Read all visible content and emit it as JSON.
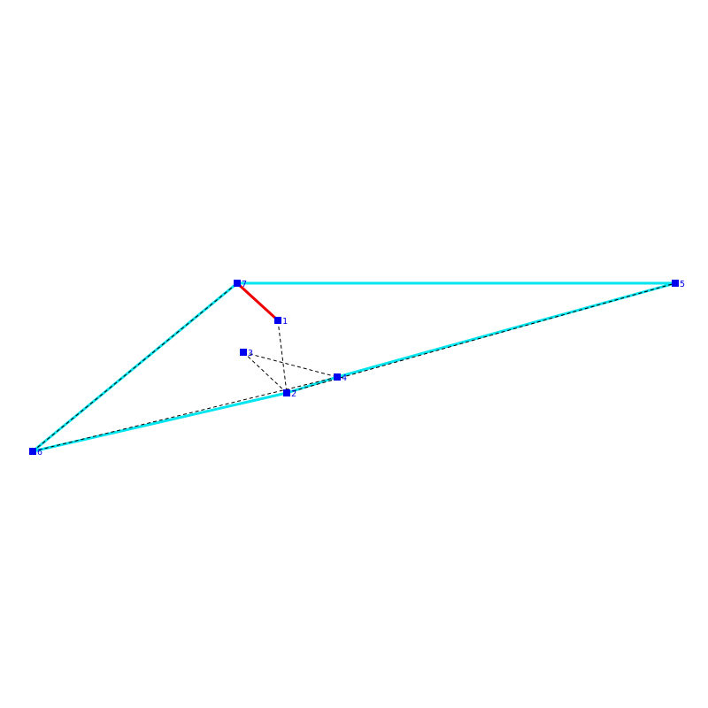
{
  "colors": {
    "background": "#ffffff",
    "hull": "#00e5ee",
    "highlight": "#ee0000",
    "dashed": "#000000",
    "node": "#0000ee",
    "label": "#0000ee"
  },
  "nodes": [
    {
      "id": "1",
      "label": "1"
    },
    {
      "id": "2",
      "label": "2"
    },
    {
      "id": "3",
      "label": "3"
    },
    {
      "id": "4",
      "label": "4"
    },
    {
      "id": "5",
      "label": "5"
    },
    {
      "id": "6",
      "label": "6"
    },
    {
      "id": "7",
      "label": "7"
    }
  ],
  "edges": [
    {
      "from": "7",
      "to": "5",
      "style": "hull"
    },
    {
      "from": "5",
      "to": "4",
      "style": "hull"
    },
    {
      "from": "4",
      "to": "2",
      "style": "hull"
    },
    {
      "from": "2",
      "to": "6",
      "style": "hull"
    },
    {
      "from": "6",
      "to": "7",
      "style": "hull"
    },
    {
      "from": "7",
      "to": "1",
      "style": "highlight"
    },
    {
      "from": "1",
      "to": "2",
      "style": "dashed"
    },
    {
      "from": "3",
      "to": "2",
      "style": "dashed"
    },
    {
      "from": "3",
      "to": "4",
      "style": "dashed"
    },
    {
      "from": "2",
      "to": "5",
      "style": "dashed"
    },
    {
      "from": "6",
      "to": "4",
      "style": "dashed"
    },
    {
      "from": "6",
      "to": "7",
      "style": "dashed"
    }
  ]
}
